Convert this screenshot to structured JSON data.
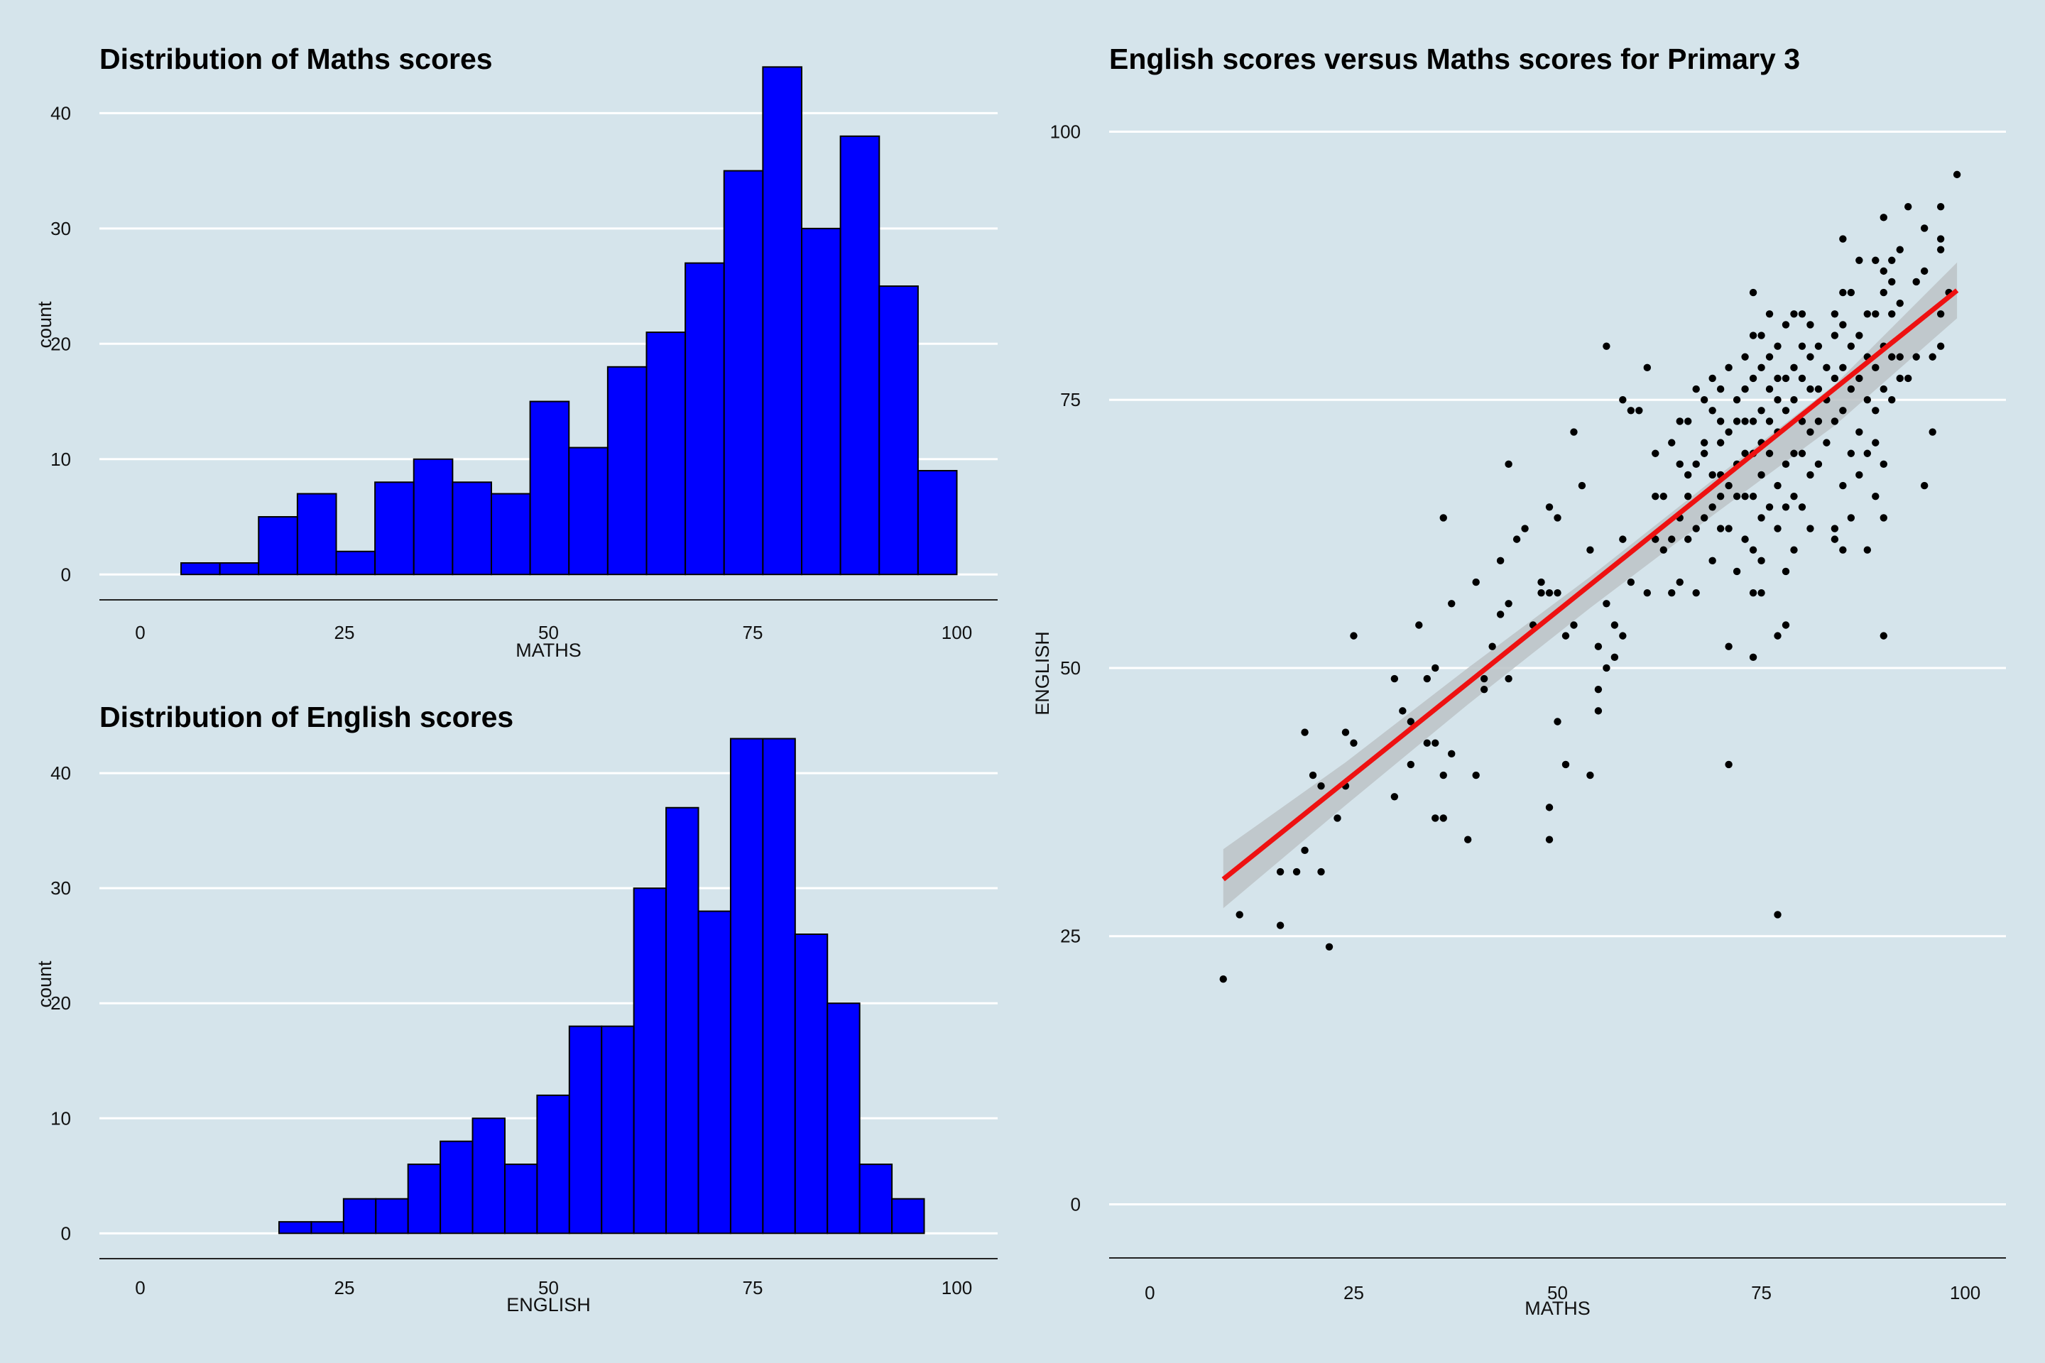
{
  "background": "#d5e4eb",
  "colors": {
    "bar_fill": "#0000ff",
    "bar_stroke": "#000000",
    "point": "#000000",
    "fit_line": "#ee1111",
    "ci_band": "#bcc3c7",
    "grid": "#ffffff"
  },
  "chart_data": [
    {
      "type": "bar",
      "title": "Distribution of Maths scores",
      "xlabel": "MATHS",
      "ylabel": "count",
      "xlim": [
        -5,
        105
      ],
      "ylim": [
        -2.2,
        45.5
      ],
      "xticks": [
        0,
        25,
        50,
        75,
        100
      ],
      "yticks": [
        0,
        10,
        20,
        30,
        40
      ],
      "bin_width": 4.75,
      "bin_start": 5.0,
      "values": [
        1,
        1,
        5,
        7,
        2,
        8,
        10,
        8,
        7,
        15,
        11,
        18,
        21,
        27,
        35,
        44,
        30,
        38,
        25,
        9
      ]
    },
    {
      "type": "bar",
      "title": "Distribution of English scores",
      "xlabel": "ENGLISH",
      "ylabel": "count",
      "xlim": [
        -5,
        105
      ],
      "ylim": [
        -2.2,
        45.5
      ],
      "xticks": [
        0,
        25,
        50,
        75,
        100
      ],
      "yticks": [
        0,
        10,
        20,
        30,
        40
      ],
      "bin_width": 3.95,
      "bin_start": 17.0,
      "values": [
        1,
        1,
        3,
        3,
        6,
        8,
        10,
        6,
        12,
        18,
        18,
        30,
        37,
        28,
        43,
        43,
        26,
        20,
        6,
        3
      ]
    },
    {
      "type": "scatter",
      "title": "English scores versus Maths scores for Primary 3",
      "xlabel": "MATHS",
      "ylabel": "ENGLISH",
      "xlim": [
        -5,
        105
      ],
      "ylim": [
        -5,
        104
      ],
      "xticks": [
        0,
        25,
        50,
        75,
        100
      ],
      "yticks": [
        0,
        25,
        50,
        75,
        100
      ],
      "fit_line": {
        "x": [
          9,
          99
        ],
        "y": [
          30.3,
          85.2
        ]
      },
      "ci_band": {
        "x": [
          9,
          24,
          39,
          54,
          69,
          84,
          99
        ],
        "lower": [
          27.6,
          37.2,
          46.6,
          55.6,
          64.2,
          72.6,
          82.6
        ],
        "upper": [
          33.1,
          41.2,
          50.0,
          58.5,
          67.5,
          76.4,
          87.8
        ]
      },
      "points": [
        [
          9,
          21
        ],
        [
          11,
          27
        ],
        [
          16,
          26
        ],
        [
          16,
          31
        ],
        [
          18,
          31
        ],
        [
          19,
          33
        ],
        [
          19,
          44
        ],
        [
          20,
          40
        ],
        [
          21,
          31
        ],
        [
          21,
          39
        ],
        [
          22,
          24
        ],
        [
          23,
          36
        ],
        [
          24,
          39
        ],
        [
          24,
          44
        ],
        [
          25,
          43
        ],
        [
          25,
          53
        ],
        [
          30,
          38
        ],
        [
          30,
          49
        ],
        [
          31,
          46
        ],
        [
          32,
          41
        ],
        [
          32,
          45
        ],
        [
          33,
          54
        ],
        [
          34,
          43
        ],
        [
          34,
          49
        ],
        [
          35,
          36
        ],
        [
          35,
          43
        ],
        [
          35,
          50
        ],
        [
          36,
          36
        ],
        [
          36,
          40
        ],
        [
          36,
          64
        ],
        [
          37,
          42
        ],
        [
          37,
          56
        ],
        [
          39,
          34
        ],
        [
          40,
          40
        ],
        [
          40,
          58
        ],
        [
          41,
          48
        ],
        [
          41,
          49
        ],
        [
          42,
          52
        ],
        [
          43,
          55
        ],
        [
          43,
          60
        ],
        [
          44,
          49
        ],
        [
          44,
          56
        ],
        [
          44,
          69
        ],
        [
          45,
          62
        ],
        [
          46,
          63
        ],
        [
          47,
          54
        ],
        [
          48,
          57
        ],
        [
          48,
          58
        ],
        [
          49,
          34
        ],
        [
          49,
          37
        ],
        [
          49,
          57
        ],
        [
          49,
          65
        ],
        [
          50,
          45
        ],
        [
          50,
          57
        ],
        [
          50,
          64
        ],
        [
          51,
          41
        ],
        [
          51,
          53
        ],
        [
          52,
          54
        ],
        [
          52,
          72
        ],
        [
          53,
          67
        ],
        [
          54,
          40
        ],
        [
          54,
          61
        ],
        [
          55,
          46
        ],
        [
          55,
          48
        ],
        [
          55,
          52
        ],
        [
          56,
          50
        ],
        [
          56,
          56
        ],
        [
          56,
          80
        ],
        [
          57,
          51
        ],
        [
          57,
          54
        ],
        [
          58,
          53
        ],
        [
          58,
          62
        ],
        [
          58,
          75
        ],
        [
          59,
          74
        ],
        [
          59,
          58
        ],
        [
          60,
          74
        ],
        [
          61,
          57
        ],
        [
          61,
          78
        ],
        [
          62,
          62
        ],
        [
          62,
          66
        ],
        [
          62,
          70
        ],
        [
          63,
          61
        ],
        [
          63,
          66
        ],
        [
          64,
          62
        ],
        [
          64,
          71
        ],
        [
          64,
          57
        ],
        [
          65,
          58
        ],
        [
          65,
          64
        ],
        [
          65,
          69
        ],
        [
          65,
          73
        ],
        [
          66,
          62
        ],
        [
          66,
          66
        ],
        [
          66,
          68
        ],
        [
          66,
          73
        ],
        [
          67,
          57
        ],
        [
          67,
          63
        ],
        [
          67,
          69
        ],
        [
          67,
          76
        ],
        [
          68,
          64
        ],
        [
          68,
          70
        ],
        [
          68,
          71
        ],
        [
          68,
          75
        ],
        [
          69,
          60
        ],
        [
          69,
          65
        ],
        [
          69,
          68
        ],
        [
          69,
          74
        ],
        [
          69,
          77
        ],
        [
          70,
          63
        ],
        [
          70,
          66
        ],
        [
          70,
          68
        ],
        [
          70,
          71
        ],
        [
          70,
          73
        ],
        [
          70,
          76
        ],
        [
          71,
          41
        ],
        [
          71,
          52
        ],
        [
          71,
          63
        ],
        [
          71,
          67
        ],
        [
          71,
          72
        ],
        [
          71,
          78
        ],
        [
          72,
          59
        ],
        [
          72,
          66
        ],
        [
          72,
          69
        ],
        [
          72,
          73
        ],
        [
          72,
          75
        ],
        [
          73,
          62
        ],
        [
          73,
          66
        ],
        [
          73,
          70
        ],
        [
          73,
          73
        ],
        [
          73,
          76
        ],
        [
          73,
          79
        ],
        [
          74,
          51
        ],
        [
          74,
          57
        ],
        [
          74,
          61
        ],
        [
          74,
          66
        ],
        [
          74,
          70
        ],
        [
          74,
          73
        ],
        [
          74,
          77
        ],
        [
          74,
          81
        ],
        [
          74,
          85
        ],
        [
          75,
          57
        ],
        [
          75,
          60
        ],
        [
          75,
          64
        ],
        [
          75,
          68
        ],
        [
          75,
          71
        ],
        [
          75,
          74
        ],
        [
          75,
          78
        ],
        [
          75,
          81
        ],
        [
          76,
          65
        ],
        [
          76,
          70
        ],
        [
          76,
          73
        ],
        [
          76,
          76
        ],
        [
          76,
          79
        ],
        [
          76,
          83
        ],
        [
          77,
          53
        ],
        [
          77,
          27
        ],
        [
          77,
          63
        ],
        [
          77,
          67
        ],
        [
          77,
          72
        ],
        [
          77,
          75
        ],
        [
          77,
          77
        ],
        [
          77,
          80
        ],
        [
          78,
          54
        ],
        [
          78,
          59
        ],
        [
          78,
          65
        ],
        [
          78,
          69
        ],
        [
          78,
          74
        ],
        [
          78,
          77
        ],
        [
          78,
          82
        ],
        [
          79,
          61
        ],
        [
          79,
          66
        ],
        [
          79,
          70
        ],
        [
          79,
          75
        ],
        [
          79,
          78
        ],
        [
          79,
          83
        ],
        [
          80,
          65
        ],
        [
          80,
          70
        ],
        [
          80,
          73
        ],
        [
          80,
          77
        ],
        [
          80,
          80
        ],
        [
          80,
          83
        ],
        [
          81,
          63
        ],
        [
          81,
          68
        ],
        [
          81,
          72
        ],
        [
          81,
          76
        ],
        [
          81,
          79
        ],
        [
          81,
          82
        ],
        [
          82,
          69
        ],
        [
          82,
          73
        ],
        [
          82,
          76
        ],
        [
          82,
          80
        ],
        [
          83,
          71
        ],
        [
          83,
          75
        ],
        [
          83,
          78
        ],
        [
          84,
          63
        ],
        [
          84,
          62
        ],
        [
          84,
          73
        ],
        [
          84,
          77
        ],
        [
          84,
          81
        ],
        [
          84,
          83
        ],
        [
          85,
          61
        ],
        [
          85,
          67
        ],
        [
          85,
          74
        ],
        [
          85,
          78
        ],
        [
          85,
          82
        ],
        [
          85,
          85
        ],
        [
          85,
          90
        ],
        [
          86,
          64
        ],
        [
          86,
          70
        ],
        [
          86,
          76
        ],
        [
          86,
          80
        ],
        [
          86,
          85
        ],
        [
          87,
          68
        ],
        [
          87,
          72
        ],
        [
          87,
          77
        ],
        [
          87,
          81
        ],
        [
          87,
          88
        ],
        [
          88,
          61
        ],
        [
          88,
          70
        ],
        [
          88,
          75
        ],
        [
          88,
          79
        ],
        [
          88,
          83
        ],
        [
          89,
          66
        ],
        [
          89,
          71
        ],
        [
          89,
          74
        ],
        [
          89,
          78
        ],
        [
          89,
          83
        ],
        [
          89,
          88
        ],
        [
          90,
          53
        ],
        [
          90,
          64
        ],
        [
          90,
          69
        ],
        [
          90,
          76
        ],
        [
          90,
          80
        ],
        [
          90,
          85
        ],
        [
          90,
          87
        ],
        [
          90,
          92
        ],
        [
          91,
          75
        ],
        [
          91,
          79
        ],
        [
          91,
          83
        ],
        [
          91,
          86
        ],
        [
          91,
          88
        ],
        [
          92,
          77
        ],
        [
          92,
          79
        ],
        [
          92,
          84
        ],
        [
          92,
          89
        ],
        [
          93,
          77
        ],
        [
          93,
          93
        ],
        [
          94,
          79
        ],
        [
          94,
          86
        ],
        [
          95,
          67
        ],
        [
          95,
          87
        ],
        [
          95,
          91
        ],
        [
          96,
          72
        ],
        [
          96,
          79
        ],
        [
          97,
          80
        ],
        [
          97,
          83
        ],
        [
          97,
          89
        ],
        [
          97,
          90
        ],
        [
          97,
          93
        ],
        [
          98,
          85
        ],
        [
          99,
          96
        ]
      ]
    }
  ]
}
